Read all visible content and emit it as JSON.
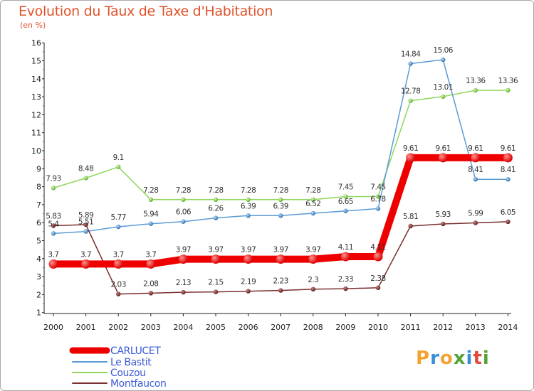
{
  "title": "Evolution du Taux de Taxe d'Habitation",
  "unit_label": "(en %)",
  "logo": {
    "letters": [
      "P",
      "r",
      "o",
      "x",
      "i",
      "t",
      "i"
    ],
    "colors": [
      "#f3a233",
      "#3a8fd4",
      "#f3a233",
      "#56a33a",
      "#3a8fd4",
      "#e04b3a",
      "#56a33a"
    ]
  },
  "chart_data": {
    "type": "line",
    "title": "Evolution du Taux de Taxe d'Habitation",
    "ylabel": "(en %)",
    "xlabel": "",
    "ylim": [
      0,
      16
    ],
    "y_ticks": [
      1,
      2,
      3,
      4,
      5,
      6,
      7,
      8,
      9,
      10,
      11,
      12,
      13,
      14,
      15,
      16
    ],
    "x": [
      "2000",
      "2001",
      "2002",
      "2003",
      "2004",
      "2005",
      "2006",
      "2007",
      "2008",
      "2009",
      "2010",
      "2011",
      "2012",
      "2013",
      "2014"
    ],
    "grid": false,
    "legend_position": "bottom-left",
    "series": [
      {
        "name": "CARLUCET",
        "color": "#ee0000",
        "values": [
          3.7,
          3.7,
          3.7,
          3.7,
          3.97,
          3.97,
          3.97,
          3.97,
          3.97,
          4.11,
          4.11,
          9.61,
          9.61,
          9.61,
          9.61
        ],
        "labels": [
          "3.7",
          "3.7",
          "3.7",
          "3.7",
          "3.97",
          "3.97",
          "3.97",
          "3.97",
          "3.97",
          "4.11",
          "4.11",
          "9.61",
          "9.61",
          "9.61",
          "9.61"
        ]
      },
      {
        "name": "Le Bastit",
        "color": "#5b9bd5",
        "values": [
          5.4,
          5.51,
          5.77,
          5.94,
          6.06,
          6.26,
          6.39,
          6.39,
          6.52,
          6.65,
          6.78,
          14.84,
          15.06,
          8.41,
          8.41
        ],
        "labels": [
          "5.4",
          "5.51",
          "5.77",
          "5.94",
          "6.06",
          "6.26",
          "6.39",
          "6.39",
          "6.52",
          "6.65",
          "6.78",
          "14.84",
          "15.06",
          "8.41",
          "8.41"
        ]
      },
      {
        "name": "Couzou",
        "color": "#8fd65a",
        "values": [
          7.93,
          8.48,
          9.1,
          7.28,
          7.28,
          7.28,
          7.28,
          7.28,
          7.28,
          7.45,
          7.45,
          12.78,
          13.01,
          13.36,
          13.36
        ],
        "labels": [
          "7.93",
          "8.48",
          "9.1",
          "7.28",
          "7.28",
          "7.28",
          "7.28",
          "7.28",
          "7.28",
          "7.45",
          "7.45",
          "12.78",
          "13.01",
          "13.36",
          "13.36"
        ]
      },
      {
        "name": "Montfaucon",
        "color": "#7b2e2e",
        "values": [
          5.83,
          5.89,
          2.03,
          2.08,
          2.13,
          2.15,
          2.19,
          2.23,
          2.3,
          2.33,
          2.38,
          5.81,
          5.93,
          5.99,
          6.05
        ],
        "labels": [
          "5.83",
          "5.89",
          "2.03",
          "2.08",
          "2.13",
          "2.15",
          "2.19",
          "2.23",
          "2.3",
          "2.33",
          "2.38",
          "5.81",
          "5.93",
          "5.99",
          "6.05"
        ]
      }
    ]
  }
}
